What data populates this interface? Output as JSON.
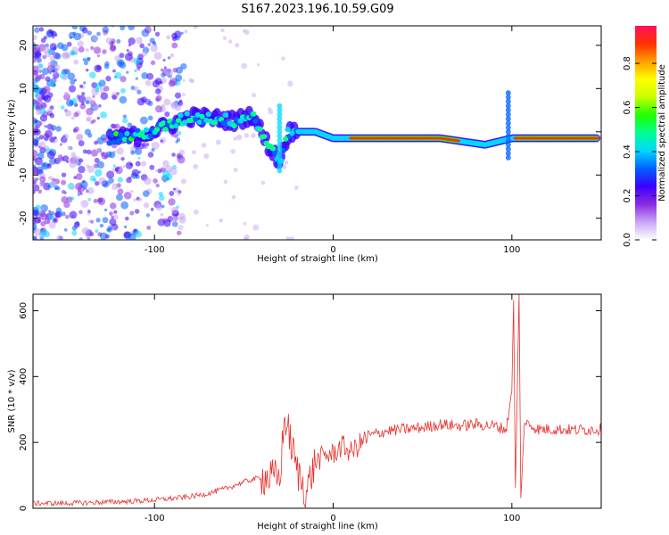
{
  "figure_title": "S167.2023.196.10.59.G09",
  "chart_data": [
    {
      "type": "heatmap",
      "title": "",
      "xlabel": "Height of straight line (km)",
      "ylabel": "Frequency (Hz)",
      "xlim": [
        -168,
        150
      ],
      "ylim": [
        -25,
        24.5
      ],
      "x_ticks": [
        -100,
        0,
        100
      ],
      "y_ticks": [
        -20,
        -10,
        0,
        10,
        20
      ],
      "grid": false,
      "colorbar": {
        "label": "Normalized spectral amplitude",
        "range": [
          0,
          0.97
        ],
        "ticks": [
          0.0,
          0.2,
          0.4,
          0.6,
          0.8
        ],
        "colormap": [
          "#ffffff",
          "#c9a6f3",
          "#8a2be2",
          "#3b00ff",
          "#0060ff",
          "#00d8ff",
          "#00ff90",
          "#20ff00",
          "#c8ff00",
          "#ffff00",
          "#ffa000",
          "#ff3000",
          "#ff1060"
        ]
      },
      "ridge": {
        "description_points": [
          {
            "x": -125,
            "y": -1.5
          },
          {
            "x": -110,
            "y": -1.0
          },
          {
            "x": -95,
            "y": 1.0
          },
          {
            "x": -80,
            "y": 3.5
          },
          {
            "x": -65,
            "y": 3.0
          },
          {
            "x": -55,
            "y": 2.5
          },
          {
            "x": -45,
            "y": 4.0
          },
          {
            "x": -38,
            "y": -2.0
          },
          {
            "x": -30,
            "y": -7.0
          },
          {
            "x": -25,
            "y": 0.0
          },
          {
            "x": -10,
            "y": 0.0
          },
          {
            "x": 0,
            "y": -1.5
          },
          {
            "x": 30,
            "y": -1.5
          },
          {
            "x": 60,
            "y": -1.5
          },
          {
            "x": 85,
            "y": -3.0
          },
          {
            "x": 100,
            "y": -1.5
          },
          {
            "x": 130,
            "y": -1.5
          },
          {
            "x": 148,
            "y": -1.5
          }
        ],
        "peak_segments": [
          [
            10,
            70
          ],
          [
            102,
            148
          ]
        ]
      }
    },
    {
      "type": "line",
      "title": "",
      "xlabel": "Height of straight line (km)",
      "ylabel": "SNR (10 * v/v)",
      "xlim": [
        -168,
        150
      ],
      "ylim": [
        0,
        650
      ],
      "x_ticks": [
        -100,
        0,
        100
      ],
      "y_ticks": [
        0,
        200,
        400,
        600
      ],
      "grid": false,
      "series_color": "#e8332f",
      "series": [
        {
          "name": "",
          "points": [
            {
              "x": -168,
              "y": 15
            },
            {
              "x": -150,
              "y": 15
            },
            {
              "x": -130,
              "y": 18
            },
            {
              "x": -110,
              "y": 22
            },
            {
              "x": -100,
              "y": 25
            },
            {
              "x": -90,
              "y": 30
            },
            {
              "x": -80,
              "y": 35
            },
            {
              "x": -70,
              "y": 45
            },
            {
              "x": -60,
              "y": 60
            },
            {
              "x": -50,
              "y": 80
            },
            {
              "x": -40,
              "y": 95
            },
            {
              "x": -30,
              "y": 90
            },
            {
              "x": -27,
              "y": 280
            },
            {
              "x": -20,
              "y": 110
            },
            {
              "x": -15,
              "y": 50
            },
            {
              "x": -10,
              "y": 140
            },
            {
              "x": -5,
              "y": 160
            },
            {
              "x": 0,
              "y": 165
            },
            {
              "x": 5,
              "y": 190
            },
            {
              "x": 10,
              "y": 170
            },
            {
              "x": 20,
              "y": 220
            },
            {
              "x": 30,
              "y": 235
            },
            {
              "x": 40,
              "y": 240
            },
            {
              "x": 50,
              "y": 245
            },
            {
              "x": 60,
              "y": 255
            },
            {
              "x": 70,
              "y": 250
            },
            {
              "x": 80,
              "y": 255
            },
            {
              "x": 90,
              "y": 250
            },
            {
              "x": 97,
              "y": 240
            },
            {
              "x": 100,
              "y": 360
            },
            {
              "x": 101,
              "y": 630
            },
            {
              "x": 102,
              "y": 60
            },
            {
              "x": 104,
              "y": 650
            },
            {
              "x": 105,
              "y": 30
            },
            {
              "x": 107,
              "y": 260
            },
            {
              "x": 115,
              "y": 240
            },
            {
              "x": 125,
              "y": 240
            },
            {
              "x": 135,
              "y": 238
            },
            {
              "x": 150,
              "y": 240
            }
          ]
        }
      ]
    }
  ]
}
